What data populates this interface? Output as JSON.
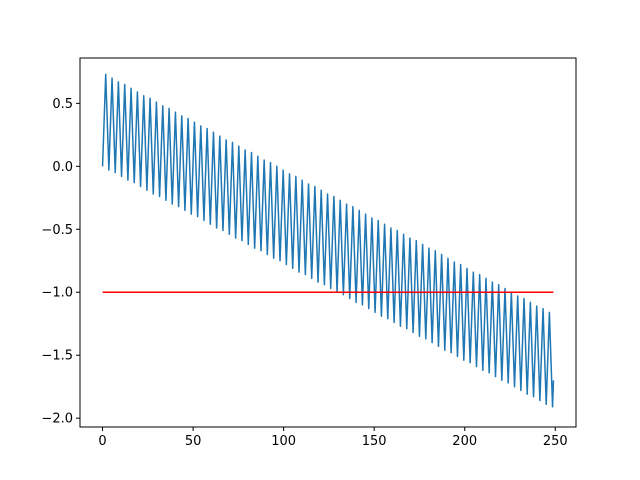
{
  "chart_data": {
    "type": "line",
    "xlim": [
      -12.45,
      261.45
    ],
    "ylim": [
      -2.07,
      0.86
    ],
    "xticks": [
      0,
      50,
      100,
      150,
      200,
      250
    ],
    "yticks": [
      {
        "value": -2.0,
        "label": "−2.0"
      },
      {
        "value": -1.5,
        "label": "−1.5"
      },
      {
        "value": -1.0,
        "label": "−1.0"
      },
      {
        "value": -0.5,
        "label": "−0.5"
      },
      {
        "value": 0.0,
        "label": "0.0"
      },
      {
        "value": 0.5,
        "label": "0.5"
      }
    ],
    "grid": false,
    "series": [
      {
        "color": "#1f77b4",
        "x": [
          0,
          1.75,
          3.5,
          5.25,
          7,
          8.75,
          10.5,
          12.25,
          14,
          15.75,
          17.5,
          19.25,
          21,
          22.75,
          24.5,
          26.25,
          28,
          29.75,
          31.5,
          33.25,
          35,
          36.75,
          38.5,
          40.25,
          42,
          43.75,
          45.5,
          47.25,
          49,
          50.75,
          52.5,
          54.25,
          56,
          57.75,
          59.5,
          61.25,
          63,
          64.75,
          66.5,
          68.25,
          70,
          71.75,
          73.5,
          75.25,
          77,
          78.75,
          80.5,
          82.25,
          84,
          85.75,
          87.5,
          89.25,
          91,
          92.75,
          94.5,
          96.25,
          98,
          99.75,
          101.5,
          103.25,
          105,
          106.75,
          108.5,
          110.25,
          112,
          113.75,
          115.5,
          117.25,
          119,
          120.75,
          122.5,
          124.25,
          126,
          127.75,
          129.5,
          131.25,
          133,
          134.75,
          136.5,
          138.25,
          140,
          141.75,
          143.5,
          145.25,
          147,
          148.75,
          150.5,
          152.25,
          154,
          155.75,
          157.5,
          159.25,
          161,
          162.75,
          164.5,
          166.25,
          168,
          169.75,
          171.5,
          173.25,
          175,
          176.75,
          178.5,
          180.25,
          182,
          183.75,
          185.5,
          187.25,
          189,
          190.75,
          192.5,
          194.25,
          196,
          197.75,
          199.5,
          201.25,
          203,
          204.75,
          206.5,
          208.25,
          210,
          211.75,
          213.5,
          215.25,
          217,
          218.75,
          220.5,
          222.25,
          224,
          225.75,
          227.5,
          229.25,
          231,
          232.75,
          234.5,
          236.25,
          238,
          239.75,
          241.5,
          243.25,
          245,
          246.75,
          248.5,
          249
        ],
        "values": [
          0,
          0.73,
          -0.03,
          0.7,
          -0.05,
          0.67,
          -0.08,
          0.65,
          -0.11,
          0.62,
          -0.13,
          0.59,
          -0.16,
          0.56,
          -0.19,
          0.54,
          -0.22,
          0.51,
          -0.24,
          0.48,
          -0.27,
          0.46,
          -0.3,
          0.43,
          -0.32,
          0.4,
          -0.35,
          0.38,
          -0.38,
          0.35,
          -0.4,
          0.32,
          -0.43,
          0.3,
          -0.46,
          0.27,
          -0.49,
          0.24,
          -0.51,
          0.21,
          -0.54,
          0.19,
          -0.57,
          0.16,
          -0.59,
          0.13,
          -0.62,
          0.11,
          -0.65,
          0.08,
          -0.67,
          0.05,
          -0.7,
          0.03,
          -0.73,
          0.0,
          -0.75,
          -0.03,
          -0.78,
          -0.06,
          -0.81,
          -0.08,
          -0.84,
          -0.11,
          -0.86,
          -0.14,
          -0.89,
          -0.16,
          -0.92,
          -0.19,
          -0.94,
          -0.22,
          -0.97,
          -0.24,
          -1.0,
          -0.27,
          -1.02,
          -0.3,
          -1.05,
          -0.32,
          -1.08,
          -0.35,
          -1.1,
          -0.38,
          -1.13,
          -0.41,
          -1.16,
          -0.43,
          -1.19,
          -0.46,
          -1.21,
          -0.49,
          -1.24,
          -0.51,
          -1.27,
          -0.54,
          -1.29,
          -0.57,
          -1.32,
          -0.59,
          -1.35,
          -0.62,
          -1.37,
          -0.65,
          -1.4,
          -0.67,
          -1.43,
          -0.7,
          -1.46,
          -0.73,
          -1.48,
          -0.76,
          -1.51,
          -0.78,
          -1.54,
          -0.81,
          -1.56,
          -0.84,
          -1.59,
          -0.86,
          -1.62,
          -0.89,
          -1.64,
          -0.92,
          -1.67,
          -0.94,
          -1.7,
          -0.97,
          -1.72,
          -1.0,
          -1.75,
          -1.03,
          -1.78,
          -1.05,
          -1.81,
          -1.08,
          -1.83,
          -1.11,
          -1.86,
          -1.13,
          -1.89,
          -1.16,
          -1.91,
          -1.7
        ]
      },
      {
        "color": "#ff0000",
        "x": [
          0,
          249
        ],
        "values": [
          -1,
          -1
        ]
      }
    ]
  }
}
